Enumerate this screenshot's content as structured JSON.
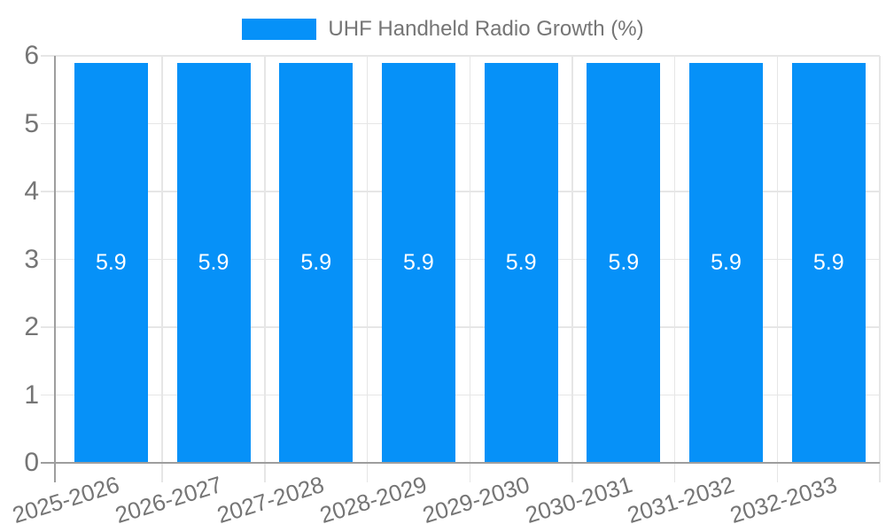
{
  "legend": {
    "label": "UHF Handheld Radio Growth (%)"
  },
  "colors": {
    "bar": "#0691f8",
    "grid": "#e6e6e6",
    "axis": "#9e9e9e",
    "tick_text": "#757575",
    "legend_text": "#757575",
    "value_text": "#ffffff",
    "background": "#ffffff"
  },
  "chart_data": {
    "type": "bar",
    "title": "UHF Handheld Radio Growth (%)",
    "categories": [
      "2025-2026",
      "2026-2027",
      "2027-2028",
      "2028-2029",
      "2029-2030",
      "2030-2031",
      "2031-2032",
      "2032-2033"
    ],
    "values": [
      5.9,
      5.9,
      5.9,
      5.9,
      5.9,
      5.9,
      5.9,
      5.9
    ],
    "value_labels": [
      "5.9",
      "5.9",
      "5.9",
      "5.9",
      "5.9",
      "5.9",
      "5.9",
      "5.9"
    ],
    "series_name": "UHF Handheld Radio Growth (%)",
    "xlabel": "",
    "ylabel": "",
    "ylim": [
      0,
      6
    ],
    "yticks": [
      0,
      1,
      2,
      3,
      4,
      5,
      6
    ],
    "grid": true,
    "legend_position": "top"
  }
}
